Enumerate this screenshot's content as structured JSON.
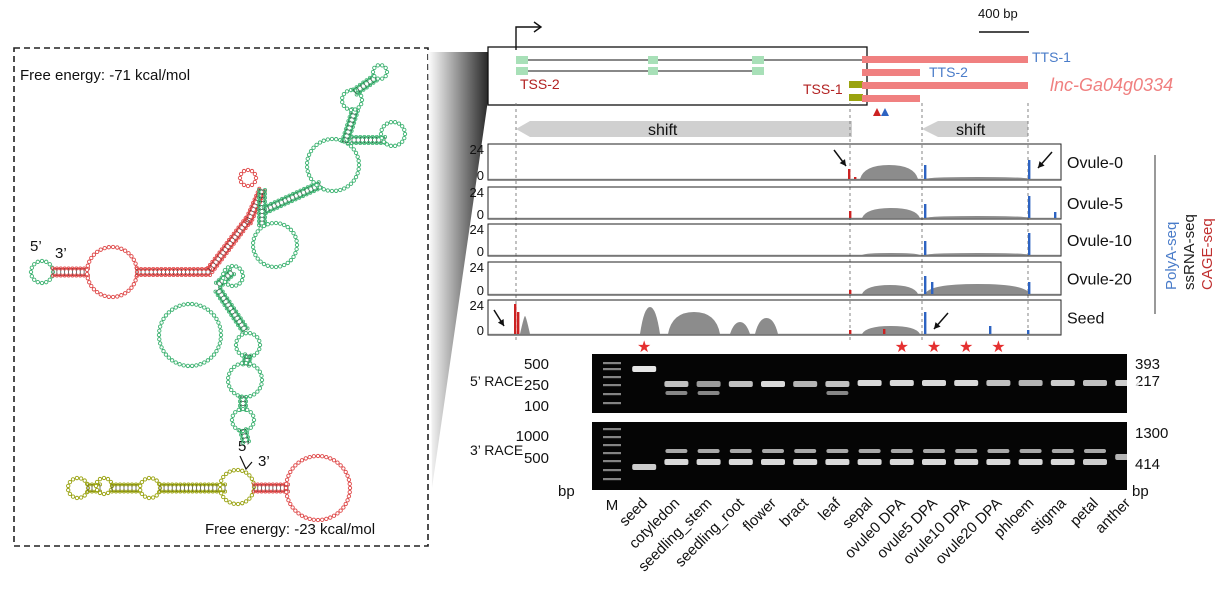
{
  "rna_panel": {
    "top_structure": {
      "free_energy": "Free energy: -71 kcal/mol",
      "five_prime": "5’",
      "three_prime": "3’"
    },
    "bottom_structure": {
      "free_energy": "Free energy: -23 kcal/mol",
      "five_prime": "5’",
      "three_prime": "3’"
    },
    "colors": {
      "green": "#3cb371",
      "red": "#e04848",
      "olive": "#9aa30f"
    }
  },
  "gene_model": {
    "scale_bar": "400 bp",
    "gene_name": "lnc-Ga04g0334",
    "tss": [
      "TSS-2",
      "TSS-1"
    ],
    "tts": [
      "TTS-1",
      "TTS-2"
    ],
    "shift_label": "shift",
    "colors": {
      "gene": "#f08080",
      "tss": "#b22222",
      "tts": "#4a7cc9",
      "exon": "#a8e0b8"
    }
  },
  "tracks": {
    "ymax": "24",
    "ymin": "0",
    "samples": [
      "Ovule-0",
      "Ovule-5",
      "Ovule-10",
      "Ovule-20",
      "Seed"
    ],
    "legend": [
      {
        "label": "PolyA-seq",
        "color": "#4a7cc9"
      },
      {
        "label": "ssRNA-seq",
        "color": "#222222"
      },
      {
        "label": "CAGE-seq",
        "color": "#c03030"
      }
    ],
    "colors": {
      "coverage": "#8c8c8c",
      "cage": "#cc2222",
      "polya": "#2d63c2"
    }
  },
  "gels": {
    "race5": {
      "title": "5’ RACE",
      "left_markers": [
        "500",
        "250",
        "100"
      ],
      "right_markers": [
        "393",
        "217"
      ]
    },
    "race3": {
      "title": "3’ RACE",
      "left_markers": [
        "1000",
        "500"
      ],
      "right_markers": [
        "1300",
        "414"
      ]
    },
    "unit": "bp",
    "lanes": [
      "M",
      "seed",
      "cotyledon",
      "seedling_stem",
      "seedling_root",
      "flower",
      "bract",
      "leaf",
      "sepal",
      "ovule0 DPA",
      "ovule5 DPA",
      "ovule10 DPA",
      "ovule20 DPA",
      "phloem",
      "stigma",
      "petal",
      "anther"
    ],
    "star": "★"
  }
}
